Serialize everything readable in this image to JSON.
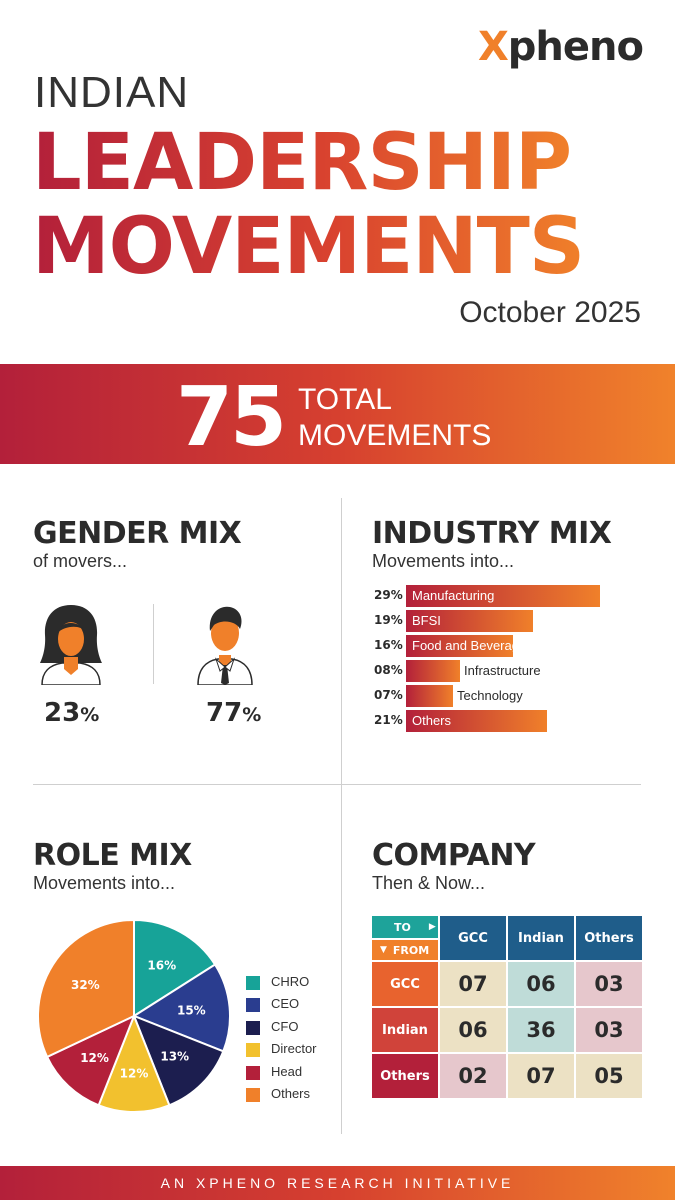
{
  "brand": {
    "logo_x": "X",
    "logo_rest": "pheno"
  },
  "header": {
    "line1": "INDIAN",
    "line2": "LEADERSHIP",
    "line3": "MOVEMENTS",
    "date": "October 2025"
  },
  "total": {
    "number": "75",
    "label_line1": "TOTAL",
    "label_line2": "MOVEMENTS"
  },
  "gender": {
    "title": "GENDER MIX",
    "subtitle": "of movers...",
    "female": {
      "value": "23",
      "unit": "%"
    },
    "male": {
      "value": "77",
      "unit": "%"
    }
  },
  "industry": {
    "title": "INDUSTRY MIX",
    "subtitle": "Movements into...",
    "items": [
      {
        "pct": "29%",
        "label": "Manufacturing",
        "value": 29
      },
      {
        "pct": "19%",
        "label": "BFSI",
        "value": 19
      },
      {
        "pct": "16%",
        "label": "Food and Beverage",
        "value": 16
      },
      {
        "pct": "08%",
        "label": "Infrastructure",
        "value": 8
      },
      {
        "pct": "07%",
        "label": "Technology",
        "value": 7
      },
      {
        "pct": "21%",
        "label": "Others",
        "value": 21
      }
    ]
  },
  "role": {
    "title": "ROLE MIX",
    "subtitle": "Movements into..."
  },
  "chart_data": {
    "type": "pie",
    "categories": [
      "CHRO",
      "CEO",
      "CFO",
      "Director",
      "Head",
      "Others"
    ],
    "values": [
      16,
      15,
      13,
      12,
      12,
      32
    ],
    "labels": [
      "16%",
      "15%",
      "13%",
      "12%",
      "12%",
      "32%"
    ],
    "colors": [
      "#17a398",
      "#2a3d8f",
      "#1c1e4f",
      "#f2c12e",
      "#b3203a",
      "#f0802a"
    ],
    "legend": "right"
  },
  "company": {
    "title": "COMPANY",
    "subtitle": "Then & Now...",
    "to_label": "TO",
    "from_label": "FROM",
    "columns": [
      "GCC",
      "Indian",
      "Others"
    ],
    "rows": [
      {
        "label": "GCC",
        "values": [
          "07",
          "06",
          "03"
        ]
      },
      {
        "label": "Indian",
        "values": [
          "06",
          "36",
          "03"
        ]
      },
      {
        "label": "Others",
        "values": [
          "02",
          "07",
          "05"
        ]
      }
    ]
  },
  "footer": {
    "text": "AN XPHENO RESEARCH INITIATIVE"
  }
}
